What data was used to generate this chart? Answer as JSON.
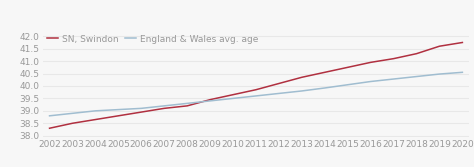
{
  "years": [
    2002,
    2003,
    2004,
    2005,
    2006,
    2007,
    2008,
    2009,
    2010,
    2011,
    2012,
    2013,
    2014,
    2015,
    2016,
    2017,
    2018,
    2019,
    2020
  ],
  "swindon": [
    38.3,
    38.5,
    38.65,
    38.8,
    38.95,
    39.1,
    39.2,
    39.45,
    39.65,
    39.85,
    40.1,
    40.35,
    40.55,
    40.75,
    40.95,
    41.1,
    41.3,
    41.6,
    41.75
  ],
  "eng_wales": [
    38.8,
    38.9,
    39.0,
    39.05,
    39.1,
    39.2,
    39.3,
    39.4,
    39.5,
    39.6,
    39.7,
    39.8,
    39.92,
    40.05,
    40.18,
    40.28,
    40.38,
    40.48,
    40.55
  ],
  "swindon_label": "SN, Swindon",
  "eng_wales_label": "England & Wales avg. age",
  "swindon_color": "#b03040",
  "eng_wales_color": "#a0bdd0",
  "background_color": "#f7f7f7",
  "plot_bg_color": "#f7f7f7",
  "grid_color": "#e8e8e8",
  "ylim": [
    37.95,
    42.25
  ],
  "yticks": [
    38.0,
    38.5,
    39.0,
    39.5,
    40.0,
    40.5,
    41.0,
    41.5,
    42.0
  ],
  "tick_label_color": "#999999",
  "tick_label_fontsize": 6.5,
  "legend_fontsize": 6.5,
  "line_width": 1.1
}
